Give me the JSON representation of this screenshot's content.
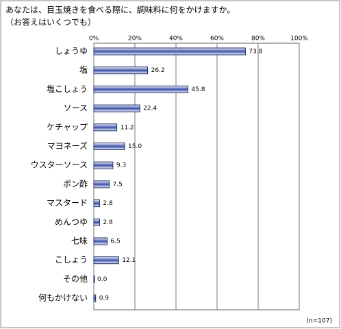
{
  "chart_data": {
    "type": "hbar",
    "title": "あなたは、目玉焼きを食べる際に、調味料に何をかけますか。",
    "subtitle": "（お答えはいくつでも）",
    "note": "(n=107)",
    "categories": [
      "しょうゆ",
      "塩",
      "塩こしょう",
      "ソース",
      "ケチャップ",
      "マヨネーズ",
      "ウスターソース",
      "ポン酢",
      "マスタード",
      "めんつゆ",
      "七味",
      "こしょう",
      "その他",
      "何もかけない"
    ],
    "values": [
      73.8,
      26.2,
      45.8,
      22.4,
      11.2,
      15.0,
      9.3,
      7.5,
      2.8,
      2.8,
      6.5,
      12.1,
      0.0,
      0.9
    ],
    "value_labels": [
      "73.8",
      "26.2",
      "45.8",
      "22.4",
      "11.2",
      "15.0",
      "9.3",
      "7.5",
      "2.8",
      "2.8",
      "6.5",
      "12.1",
      "0.0",
      "0.9"
    ],
    "color": "#3a4fa8",
    "xlim": [
      0,
      100
    ],
    "xticks": [
      {
        "value": 0,
        "label": "0%"
      },
      {
        "value": 20,
        "label": "20%"
      },
      {
        "value": 40,
        "label": "40%"
      },
      {
        "value": 60,
        "label": "60%"
      },
      {
        "value": 80,
        "label": "80%"
      },
      {
        "value": 100,
        "label": "100%"
      }
    ],
    "grid": true
  }
}
